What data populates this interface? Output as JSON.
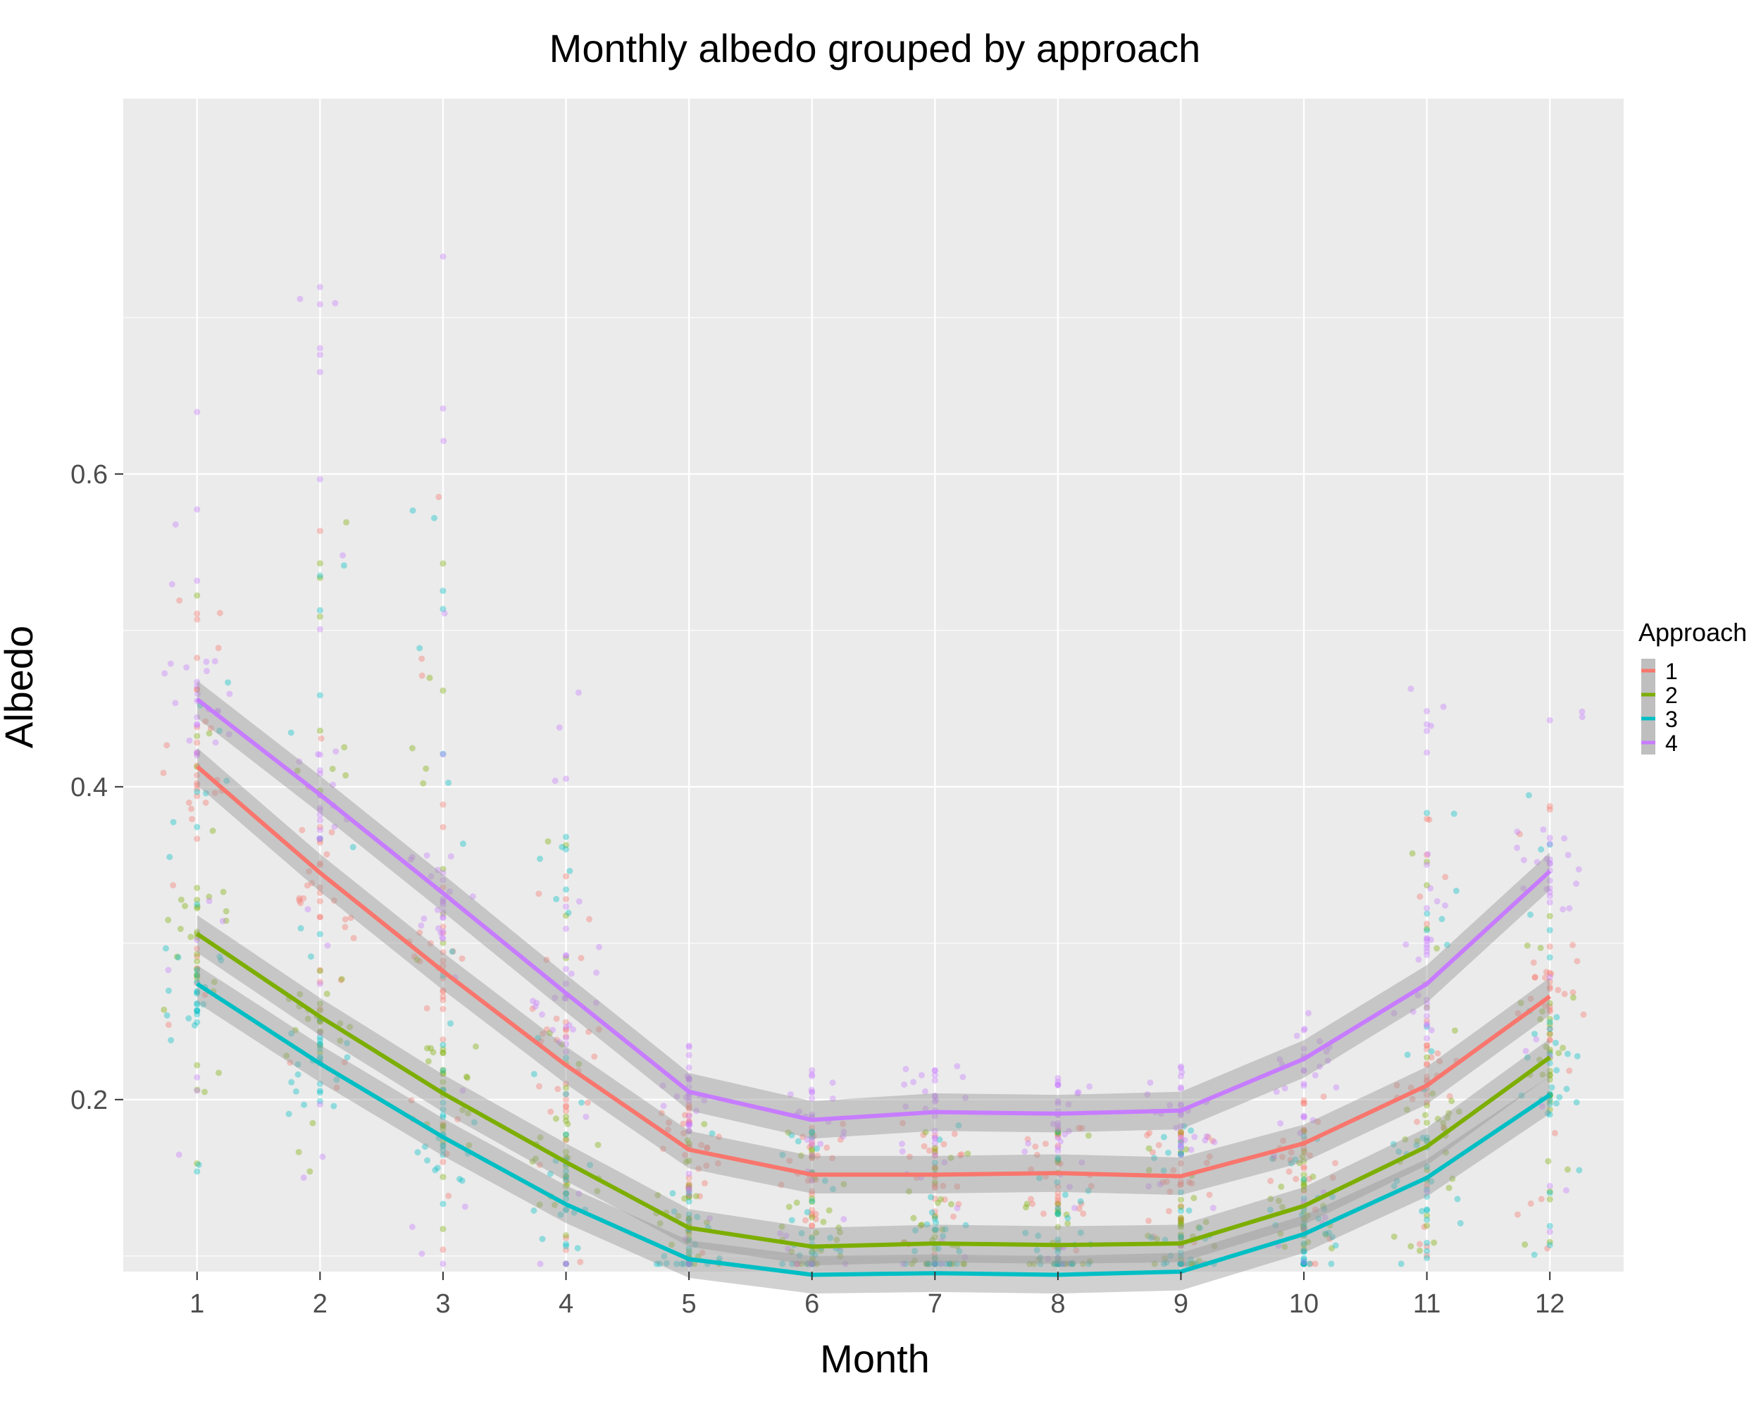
{
  "chart_data": {
    "type": "line",
    "title": "Monthly albedo grouped by approach",
    "xlabel": "Month",
    "ylabel": "Albedo",
    "xlim": [
      0.4,
      12.6
    ],
    "ylim": [
      0.09,
      0.84
    ],
    "x_ticks": [
      1,
      2,
      3,
      4,
      5,
      6,
      7,
      8,
      9,
      10,
      11,
      12
    ],
    "y_ticks": [
      0.2,
      0.4,
      0.6
    ],
    "y_tick_labels": [
      "0.2",
      "0.4",
      "0.6"
    ],
    "grid": true,
    "legend": {
      "title": "Approach",
      "position": "right"
    },
    "confidence_band_halfwidth": 0.012,
    "series": [
      {
        "name": "1",
        "color": "#F8766D",
        "values": [
          0.413,
          0.345,
          0.282,
          0.222,
          0.168,
          0.152,
          0.152,
          0.153,
          0.151,
          0.172,
          0.209,
          0.266
        ]
      },
      {
        "name": "2",
        "color": "#7CAE00",
        "values": [
          0.306,
          0.253,
          0.204,
          0.16,
          0.118,
          0.106,
          0.108,
          0.107,
          0.108,
          0.132,
          0.17,
          0.227
        ]
      },
      {
        "name": "3",
        "color": "#00BFC4",
        "values": [
          0.274,
          0.223,
          0.176,
          0.133,
          0.098,
          0.088,
          0.089,
          0.088,
          0.09,
          0.114,
          0.15,
          0.203
        ]
      },
      {
        "name": "4",
        "color": "#C77CFF",
        "values": [
          0.456,
          0.395,
          0.332,
          0.268,
          0.205,
          0.187,
          0.192,
          0.191,
          0.193,
          0.226,
          0.274,
          0.346
        ]
      }
    ],
    "points": {
      "count_per_month_per_series": 36,
      "y_spread_by_month": [
        [
          0.15,
          0.65
        ],
        [
          0.15,
          0.72
        ],
        [
          0.09,
          0.76
        ],
        [
          0.08,
          0.47
        ],
        [
          0.08,
          0.22
        ],
        [
          0.08,
          0.22
        ],
        [
          0.08,
          0.22
        ],
        [
          0.08,
          0.22
        ],
        [
          0.08,
          0.22
        ],
        [
          0.08,
          0.22
        ],
        [
          0.09,
          0.49
        ],
        [
          0.1,
          0.5
        ]
      ]
    }
  }
}
